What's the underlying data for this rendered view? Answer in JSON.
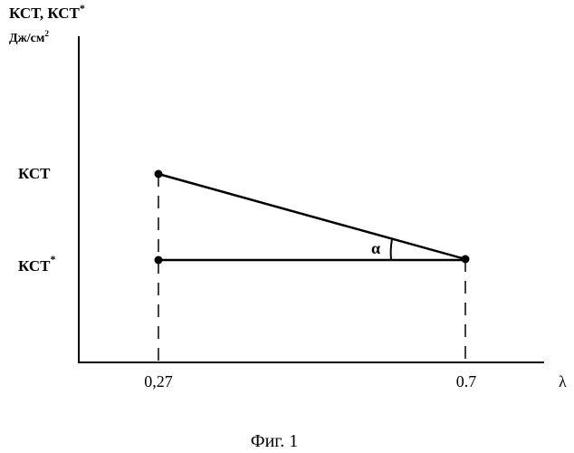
{
  "figure": {
    "y_axis_title_line1": "КСТ, КСТ",
    "y_axis_title_line1_sup": "*",
    "y_axis_title_line2": "Дж/см",
    "y_axis_title_line2_sup": "2",
    "y_label_upper": "КСТ",
    "y_label_lower": "КСТ",
    "y_label_lower_sup": "*",
    "x_tick_left": "0,27",
    "x_tick_right": "0.7",
    "x_axis_symbol": "λ",
    "angle_label": "α",
    "caption": "Фиг. 1"
  },
  "colors": {
    "ink": "#000000",
    "background": "#ffffff"
  }
}
